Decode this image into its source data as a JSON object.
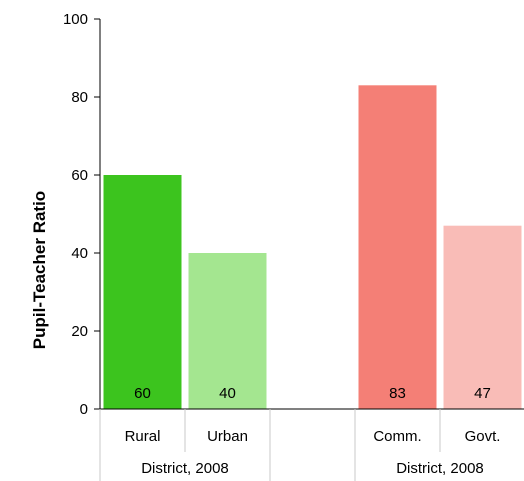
{
  "chart_data": {
    "type": "bar",
    "ylabel": "Pupil-Teacher Ratio",
    "ylim": [
      0,
      100
    ],
    "yticks": [
      "0",
      "20",
      "40",
      "60",
      "80",
      "100"
    ],
    "grid": false,
    "bars": [
      {
        "category": "Rural",
        "group": "District, 2008",
        "value": 60,
        "label": "60",
        "color": "#3cc41e"
      },
      {
        "category": "Urban",
        "group": "District, 2008",
        "value": 40,
        "label": "40",
        "color": "#a4e690"
      },
      {
        "category": "Comm.",
        "group": "District, 2008",
        "value": 83,
        "label": "83",
        "color": "#f47f76"
      },
      {
        "category": "Govt.",
        "group": "District, 2008",
        "value": 47,
        "label": "47",
        "color": "#f9bcb7"
      }
    ],
    "groups": [
      "District, 2008",
      "District, 2008"
    ]
  }
}
